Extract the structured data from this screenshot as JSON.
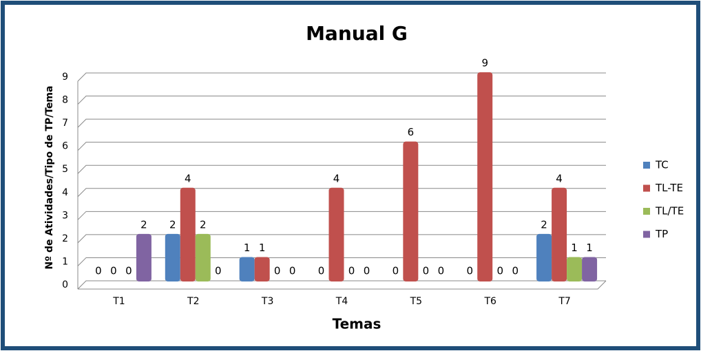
{
  "chart_data": {
    "type": "bar",
    "title": "Manual G",
    "x_label": "Temas",
    "y_label": "Nº de Atividades/Tipo de TP/Tema",
    "categories": [
      "T1",
      "T2",
      "T3",
      "T4",
      "T5",
      "T6",
      "T7"
    ],
    "series": [
      {
        "name": "TC",
        "color": "#4f81bd",
        "values": [
          0,
          2,
          1,
          0,
          0,
          0,
          2
        ]
      },
      {
        "name": "TL-TE",
        "color": "#c0504d",
        "values": [
          0,
          4,
          1,
          4,
          6,
          9,
          4
        ]
      },
      {
        "name": "TL/TE",
        "color": "#9bbb59",
        "values": [
          0,
          2,
          0,
          0,
          0,
          0,
          1
        ]
      },
      {
        "name": "TP",
        "color": "#8064a2",
        "values": [
          2,
          0,
          0,
          0,
          0,
          0,
          1
        ]
      }
    ],
    "ylim": [
      0,
      9
    ],
    "yticks": [
      0,
      1,
      2,
      3,
      4,
      5,
      6,
      7,
      8,
      9
    ],
    "grid": true,
    "legend": "right"
  }
}
